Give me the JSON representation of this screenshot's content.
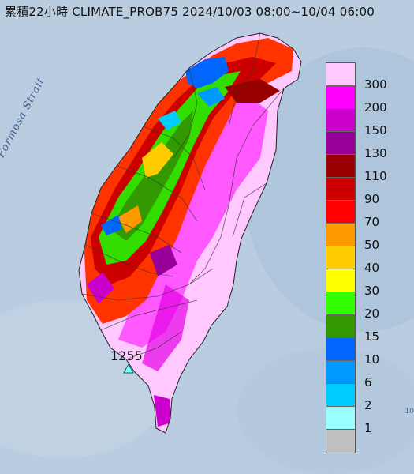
{
  "title": "累積22小時 CLIMATE_PROB75 2024/10/03 08:00~10/04 06:00",
  "strait_label": "Formosa Strait",
  "station_marker": {
    "label": "1255",
    "symbol": "triangle"
  },
  "corner_fragment": "10",
  "legend": {
    "items": [
      {
        "label": "300",
        "color": "#ffc8ff"
      },
      {
        "label": "200",
        "color": "#ff00ff"
      },
      {
        "label": "150",
        "color": "#cc00cc"
      },
      {
        "label": "130",
        "color": "#990099"
      },
      {
        "label": "110",
        "color": "#990000"
      },
      {
        "label": "90",
        "color": "#cc0000"
      },
      {
        "label": "70",
        "color": "#ff0000"
      },
      {
        "label": "50",
        "color": "#ff9900"
      },
      {
        "label": "40",
        "color": "#ffcc00"
      },
      {
        "label": "30",
        "color": "#ffff00"
      },
      {
        "label": "20",
        "color": "#33ff00"
      },
      {
        "label": "15",
        "color": "#339900"
      },
      {
        "label": "10",
        "color": "#0066ff"
      },
      {
        "label": "6",
        "color": "#0099ff"
      },
      {
        "label": "2",
        "color": "#00ccff"
      },
      {
        "label": "1",
        "color": "#99ffff"
      },
      {
        "label": "",
        "color": "#c0c0c0"
      }
    ]
  }
}
